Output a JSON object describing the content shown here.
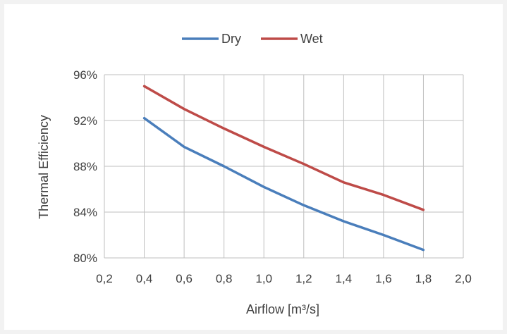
{
  "chart_data": {
    "type": "line",
    "title": "",
    "xlabel": "Airflow [m³/s]",
    "ylabel": "Thermal Efficiency",
    "xlim": [
      0.2,
      2.0
    ],
    "ylim": [
      0.8,
      0.96
    ],
    "x_ticks": [
      "0,2",
      "0,4",
      "0,6",
      "0,8",
      "1,0",
      "1,2",
      "1,4",
      "1,6",
      "1,8",
      "2,0"
    ],
    "y_ticks": [
      "80%",
      "84%",
      "88%",
      "92%",
      "96%"
    ],
    "grid": true,
    "legend_position": "top",
    "series": [
      {
        "name": "Dry",
        "color": "#4a7ebb",
        "x": [
          0.4,
          0.6,
          0.8,
          1.0,
          1.2,
          1.4,
          1.6,
          1.8
        ],
        "y": [
          0.922,
          0.897,
          0.88,
          0.862,
          0.846,
          0.832,
          0.82,
          0.807
        ]
      },
      {
        "name": "Wet",
        "color": "#be4b48",
        "x": [
          0.4,
          0.6,
          0.8,
          1.0,
          1.2,
          1.4,
          1.6,
          1.8
        ],
        "y": [
          0.95,
          0.93,
          0.913,
          0.897,
          0.882,
          0.866,
          0.855,
          0.842
        ]
      }
    ]
  }
}
